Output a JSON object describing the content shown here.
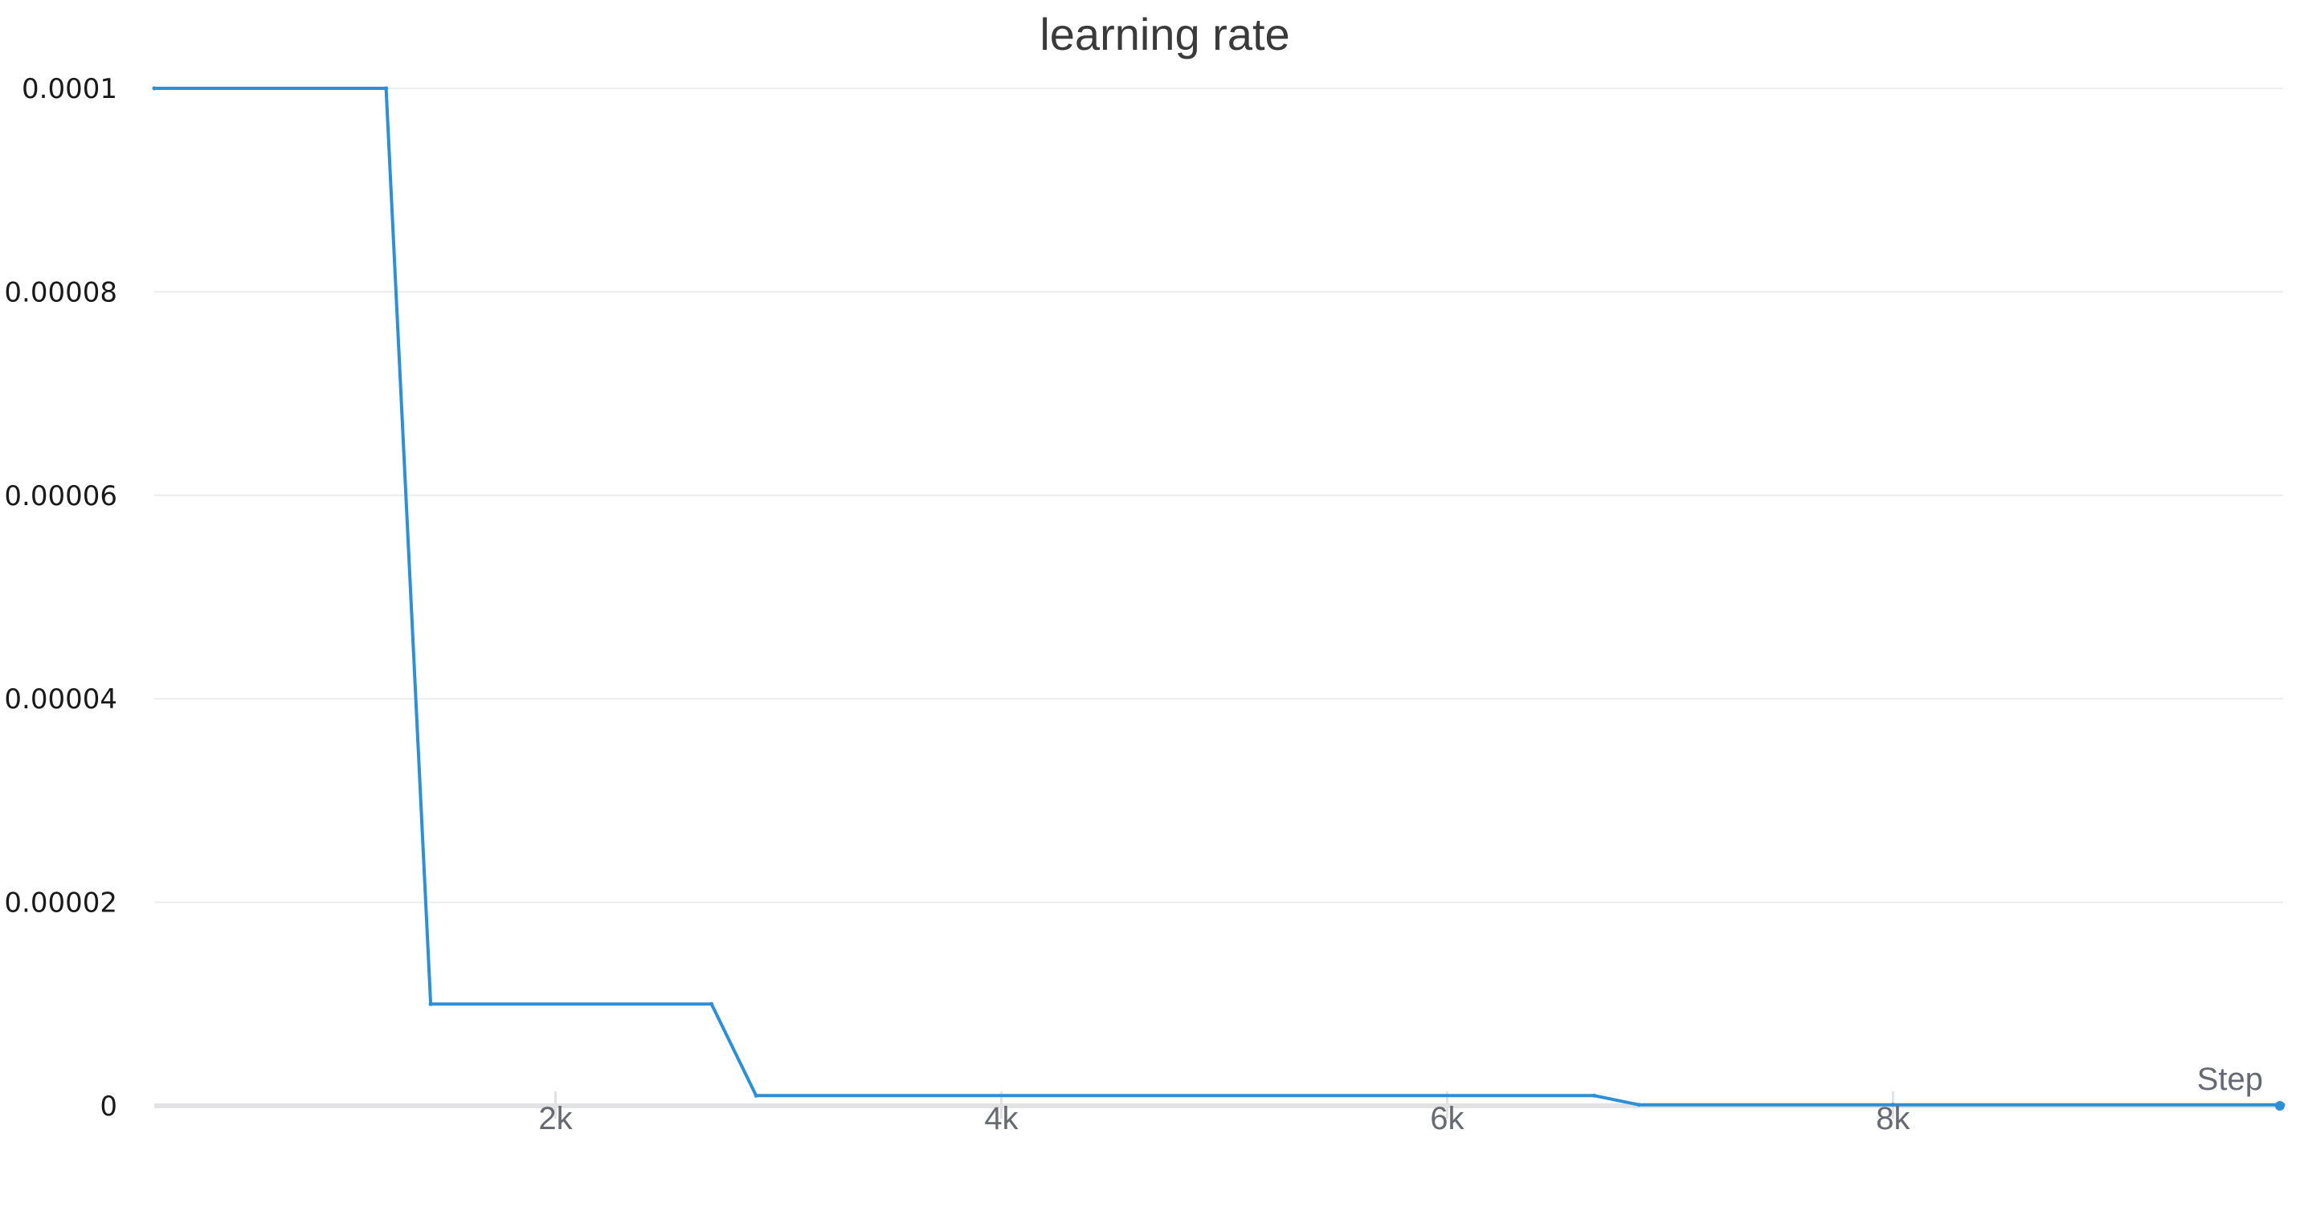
{
  "chart_data": {
    "type": "line",
    "title": "learning rate",
    "xlabel": "Step",
    "ylabel": "",
    "xlim": [
      200,
      9750
    ],
    "ylim": [
      0,
      0.0001
    ],
    "xticks": [
      2000,
      4000,
      6000,
      8000
    ],
    "xtick_labels": [
      "2k",
      "4k",
      "6k",
      "8k"
    ],
    "yticks": [
      0,
      2e-05,
      4e-05,
      6e-05,
      8e-05,
      0.0001
    ],
    "ytick_labels": [
      "0",
      "0.00002",
      "0.00004",
      "0.00006",
      "0.00008",
      "0.0001"
    ],
    "grid": true,
    "legend": "none",
    "series": [
      {
        "color": "#2d8fd5",
        "x": [
          200,
          1240,
          1440,
          2700,
          2900,
          6660,
          6860,
          8000,
          9750
        ],
        "y": [
          0.0001,
          0.0001,
          1e-05,
          1e-05,
          1e-06,
          1e-06,
          1e-07,
          1e-07,
          1e-07
        ]
      }
    ]
  }
}
